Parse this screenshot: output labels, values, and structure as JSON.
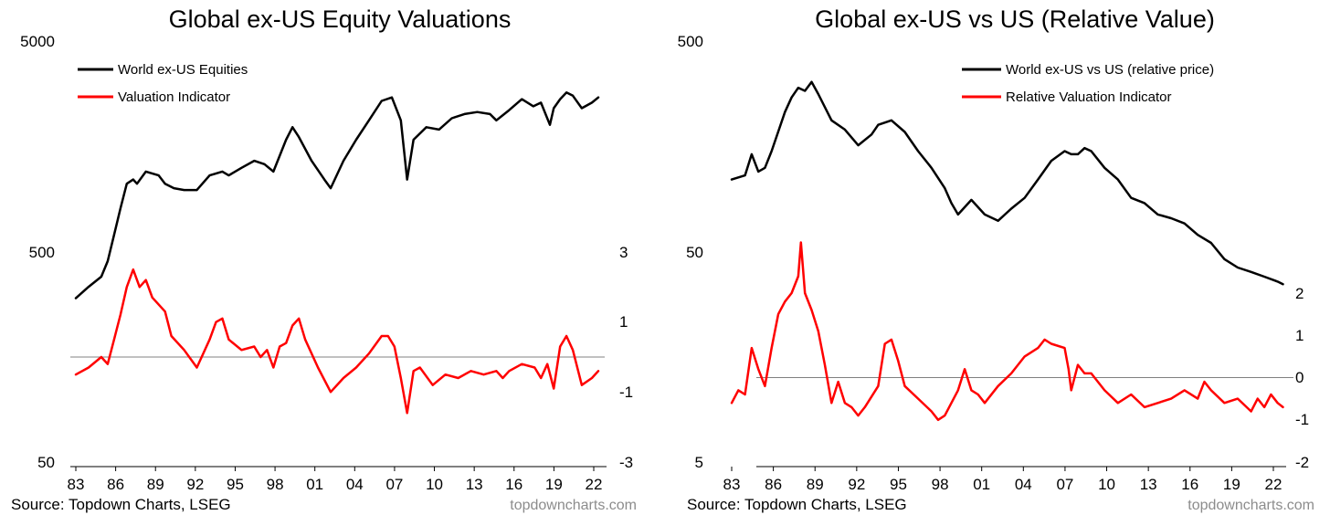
{
  "colors": {
    "primary": "#000000",
    "indicator": "#ff0000",
    "zero_line": "#808080",
    "brand_text": "#8c8c8c"
  },
  "chart_data": [
    {
      "type": "line",
      "title": "Global ex-US Equity Valuations",
      "x_ticks": [
        "83",
        "86",
        "89",
        "92",
        "95",
        "98",
        "01",
        "04",
        "07",
        "10",
        "13",
        "16",
        "19",
        "22"
      ],
      "x_range": [
        1983,
        2024.5
      ],
      "left_axis": {
        "scale": "log",
        "ticks": [
          "5000",
          "500",
          "50"
        ],
        "range": [
          50,
          5000
        ]
      },
      "right_axis": {
        "scale": "linear",
        "ticks": [
          "3",
          "1",
          "-1",
          "-3"
        ],
        "range": [
          -3,
          3
        ]
      },
      "zero_line_value": 0,
      "series": [
        {
          "name": "World ex-US Equities",
          "axis": "left",
          "color": "#000000",
          "x": [
            1983.0,
            1984.0,
            1985.0,
            1985.5,
            1986.0,
            1986.5,
            1987.0,
            1987.5,
            1987.8,
            1988.5,
            1989.5,
            1990.0,
            1990.7,
            1991.5,
            1992.5,
            1993.5,
            1994.5,
            1995.0,
            1996.0,
            1997.0,
            1997.8,
            1998.5,
            1999.5,
            2000.0,
            2000.5,
            2001.5,
            2002.5,
            2003.0,
            2004.0,
            2005.0,
            2006.0,
            2007.0,
            2007.8,
            2008.5,
            2009.0,
            2009.5,
            2010.5,
            2011.5,
            2012.5,
            2013.5,
            2014.5,
            2015.5,
            2016.0,
            2017.0,
            2018.0,
            2018.9,
            2019.5,
            2020.2,
            2020.5,
            2021.0,
            2021.5,
            2022.0,
            2022.7,
            2023.5,
            2024.0
          ],
          "y": [
            300,
            340,
            380,
            450,
            600,
            800,
            1050,
            1100,
            1050,
            1200,
            1150,
            1050,
            1000,
            980,
            980,
            1150,
            1200,
            1150,
            1250,
            1350,
            1300,
            1200,
            1700,
            1950,
            1750,
            1350,
            1100,
            1000,
            1350,
            1700,
            2100,
            2600,
            2700,
            2100,
            1100,
            1700,
            1950,
            1900,
            2150,
            2250,
            2300,
            2250,
            2100,
            2350,
            2650,
            2450,
            2550,
            2000,
            2400,
            2650,
            2850,
            2750,
            2400,
            2550,
            2700
          ]
        },
        {
          "name": "Valuation Indicator",
          "axis": "right",
          "color": "#ff0000",
          "x": [
            1983.0,
            1984.0,
            1985.0,
            1985.5,
            1986.0,
            1986.5,
            1987.0,
            1987.5,
            1988.0,
            1988.5,
            1989.0,
            1990.0,
            1990.5,
            1991.5,
            1992.5,
            1993.5,
            1994.0,
            1994.5,
            1995.0,
            1996.0,
            1997.0,
            1997.5,
            1998.0,
            1998.5,
            1999.0,
            1999.5,
            2000.0,
            2000.5,
            2001.0,
            2002.0,
            2003.0,
            2004.0,
            2005.0,
            2006.0,
            2007.0,
            2007.5,
            2008.0,
            2008.5,
            2009.0,
            2009.5,
            2010.0,
            2011.0,
            2012.0,
            2013.0,
            2014.0,
            2015.0,
            2016.0,
            2016.5,
            2017.0,
            2018.0,
            2019.0,
            2019.5,
            2020.0,
            2020.5,
            2021.0,
            2021.5,
            2022.0,
            2022.7,
            2023.5,
            2024.0
          ],
          "y": [
            -0.5,
            -0.3,
            0.0,
            -0.2,
            0.5,
            1.2,
            2.0,
            2.5,
            2.0,
            2.2,
            1.7,
            1.3,
            0.6,
            0.2,
            -0.3,
            0.5,
            1.0,
            1.1,
            0.5,
            0.2,
            0.3,
            0.0,
            0.2,
            -0.3,
            0.3,
            0.4,
            0.9,
            1.1,
            0.5,
            -0.3,
            -1.0,
            -0.6,
            -0.3,
            0.1,
            0.6,
            0.6,
            0.3,
            -0.6,
            -1.6,
            -0.4,
            -0.3,
            -0.8,
            -0.5,
            -0.6,
            -0.4,
            -0.5,
            -0.4,
            -0.6,
            -0.4,
            -0.2,
            -0.3,
            -0.6,
            -0.2,
            -0.9,
            0.3,
            0.6,
            0.2,
            -0.8,
            -0.6,
            -0.4
          ]
        }
      ]
    },
    {
      "type": "line",
      "title": "Global ex-US vs US (Relative Value)",
      "x_ticks": [
        "83",
        "86",
        "89",
        "92",
        "95",
        "98",
        "01",
        "04",
        "07",
        "10",
        "13",
        "16",
        "19",
        "22"
      ],
      "x_range": [
        1983,
        2024.5
      ],
      "left_axis": {
        "scale": "log",
        "ticks": [
          "500",
          "50",
          "5"
        ],
        "range": [
          5,
          500
        ]
      },
      "right_axis": {
        "scale": "linear",
        "ticks": [
          "2",
          "1",
          "0",
          "-1",
          "-2"
        ],
        "range": [
          -2,
          2.5
        ]
      },
      "zero_line_value": 0,
      "series": [
        {
          "name": "World ex-US vs US (relative price)",
          "axis": "left",
          "color": "#000000",
          "x": [
            1983.0,
            1984.0,
            1984.5,
            1985.0,
            1985.5,
            1986.0,
            1987.0,
            1987.5,
            1988.0,
            1988.5,
            1989.0,
            1989.5,
            1990.5,
            1991.5,
            1992.5,
            1993.5,
            1994.0,
            1995.0,
            1996.0,
            1997.0,
            1998.0,
            1999.0,
            1999.5,
            2000.0,
            2001.0,
            2002.0,
            2003.0,
            2004.0,
            2005.0,
            2006.0,
            2007.0,
            2008.0,
            2008.5,
            2009.0,
            2009.5,
            2010.0,
            2011.0,
            2012.0,
            2013.0,
            2014.0,
            2015.0,
            2016.0,
            2017.0,
            2018.0,
            2019.0,
            2020.0,
            2021.0,
            2022.0,
            2023.0,
            2024.0,
            2024.4
          ],
          "y": [
            110,
            115,
            145,
            120,
            125,
            150,
            230,
            270,
            300,
            290,
            320,
            280,
            210,
            190,
            160,
            180,
            200,
            210,
            185,
            150,
            125,
            100,
            85,
            75,
            88,
            75,
            70,
            80,
            90,
            110,
            135,
            150,
            145,
            145,
            155,
            150,
            125,
            110,
            90,
            85,
            75,
            72,
            68,
            60,
            55,
            46,
            42,
            40,
            38,
            36,
            35
          ]
        },
        {
          "name": "Relative Valuation Indicator",
          "axis": "right",
          "color": "#ff0000",
          "x": [
            1983.0,
            1983.5,
            1984.0,
            1984.5,
            1985.0,
            1985.5,
            1986.0,
            1986.5,
            1987.0,
            1987.5,
            1988.0,
            1988.2,
            1988.5,
            1989.0,
            1989.5,
            1990.0,
            1990.5,
            1991.0,
            1991.5,
            1992.0,
            1992.5,
            1993.0,
            1994.0,
            1994.5,
            1995.0,
            1995.5,
            1996.0,
            1997.0,
            1998.0,
            1998.5,
            1999.0,
            2000.0,
            2000.5,
            2001.0,
            2001.5,
            2002.0,
            2003.0,
            2004.0,
            2005.0,
            2006.0,
            2006.5,
            2007.0,
            2008.0,
            2008.3,
            2008.5,
            2009.0,
            2009.5,
            2010.0,
            2011.0,
            2012.0,
            2013.0,
            2014.0,
            2015.0,
            2016.0,
            2017.0,
            2018.0,
            2018.5,
            2019.0,
            2020.0,
            2021.0,
            2022.0,
            2022.5,
            2023.0,
            2023.5,
            2024.0,
            2024.4
          ],
          "y": [
            -0.6,
            -0.3,
            -0.4,
            0.7,
            0.2,
            -0.2,
            0.7,
            1.5,
            1.8,
            2.0,
            2.4,
            3.2,
            2.0,
            1.6,
            1.1,
            0.3,
            -0.6,
            -0.1,
            -0.6,
            -0.7,
            -0.9,
            -0.7,
            -0.2,
            0.8,
            0.9,
            0.4,
            -0.2,
            -0.5,
            -0.8,
            -1.0,
            -0.9,
            -0.3,
            0.2,
            -0.3,
            -0.4,
            -0.6,
            -0.2,
            0.1,
            0.5,
            0.7,
            0.9,
            0.8,
            0.7,
            0.2,
            -0.3,
            0.3,
            0.1,
            0.1,
            -0.3,
            -0.6,
            -0.4,
            -0.7,
            -0.6,
            -0.5,
            -0.3,
            -0.5,
            -0.1,
            -0.3,
            -0.6,
            -0.5,
            -0.8,
            -0.5,
            -0.7,
            -0.4,
            -0.6,
            -0.7
          ]
        }
      ]
    }
  ],
  "footer": [
    {
      "source": "Source: Topdown Charts, LSEG",
      "brand": "topdowncharts.com"
    },
    {
      "source": "Source: Topdown Charts, LSEG",
      "brand": "topdowncharts.com"
    }
  ]
}
